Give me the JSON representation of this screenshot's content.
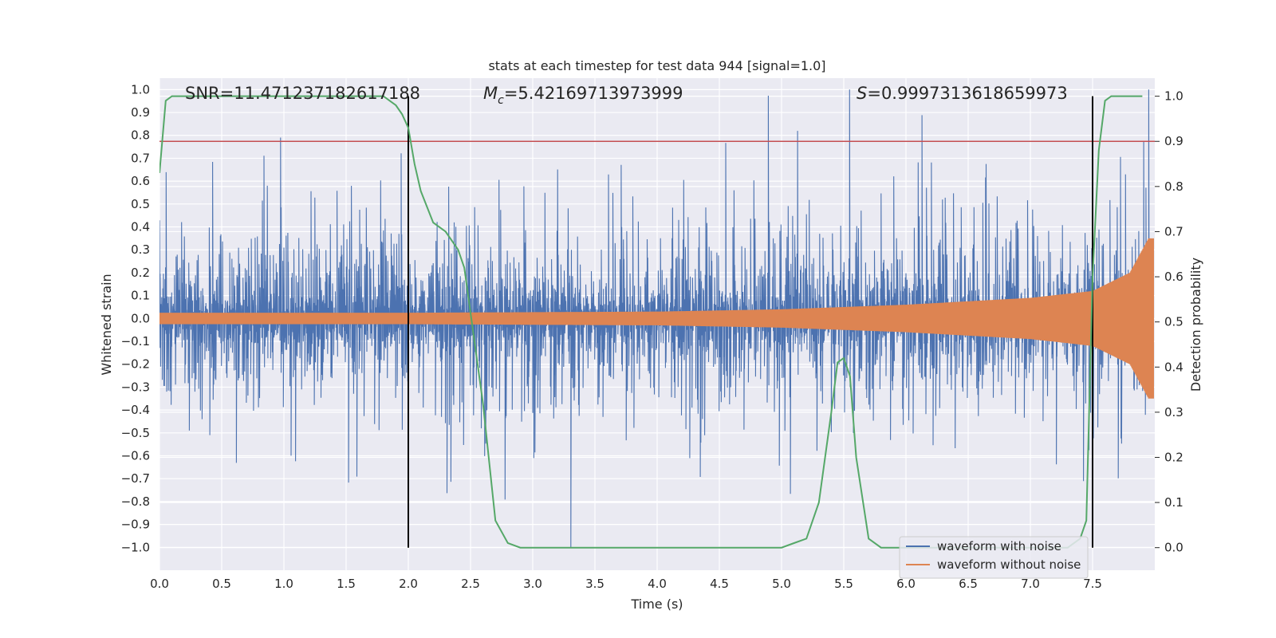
{
  "chart_data": {
    "type": "line",
    "title": "stats at each timestep for test data 944 [signal=1.0]",
    "xlabel": "Time (s)",
    "ylabel": "Whitened strain",
    "ylabel_right": "Detection probability",
    "xlim": [
      0.0,
      8.0
    ],
    "ylim": [
      -1.1,
      1.05
    ],
    "ylim_right": [
      -0.05,
      1.04
    ],
    "xticks": [
      "0.0",
      "0.5",
      "1.0",
      "1.5",
      "2.0",
      "2.5",
      "3.0",
      "3.5",
      "4.0",
      "4.5",
      "5.0",
      "5.5",
      "6.0",
      "6.5",
      "7.0",
      "7.5"
    ],
    "yticks": [
      "1.0",
      "0.9",
      "0.8",
      "0.7",
      "0.6",
      "0.5",
      "0.4",
      "0.3",
      "0.2",
      "0.1",
      "0.0",
      "-0.1",
      "-0.2",
      "-0.3",
      "-0.4",
      "-0.5",
      "-0.6",
      "-0.7",
      "-0.8",
      "-0.9",
      "-1.0"
    ],
    "yticks_right": [
      "1.0",
      "0.9",
      "0.8",
      "0.7",
      "0.6",
      "0.5",
      "0.4",
      "0.3",
      "0.2",
      "0.1",
      "0.0"
    ],
    "annotations": {
      "snr": "SNR=11.471237182617188",
      "mc_symbol": "M",
      "mc_sub": "c",
      "mc_value": "=5.42169713973999",
      "s_symbol": "S",
      "s_value": "=0.9997313618659973"
    },
    "threshold": 0.9,
    "vlines_x": [
      2.0,
      7.5
    ],
    "series": [
      {
        "name": "waveform with noise",
        "color": "#4c72b0",
        "axis": "left",
        "amplitude_range": [
          -1.0,
          1.0
        ]
      },
      {
        "name": "waveform without noise",
        "color": "#dd8452",
        "axis": "left",
        "envelope_x": [
          0.0,
          2.0,
          4.0,
          5.0,
          6.0,
          7.0,
          7.5,
          7.8,
          7.95
        ],
        "envelope_y": [
          0.025,
          0.025,
          0.03,
          0.04,
          0.06,
          0.09,
          0.12,
          0.2,
          0.35
        ]
      },
      {
        "name": "",
        "color": "#55a868",
        "axis": "right",
        "x": [
          0.0,
          0.05,
          0.1,
          0.2,
          0.4,
          1.0,
          1.5,
          1.8,
          1.9,
          1.95,
          2.0,
          2.05,
          2.1,
          2.2,
          2.3,
          2.4,
          2.45,
          2.5,
          2.6,
          2.7,
          2.8,
          2.9,
          3.5,
          4.0,
          4.5,
          5.0,
          5.1,
          5.2,
          5.3,
          5.4,
          5.45,
          5.5,
          5.55,
          5.6,
          5.7,
          5.8,
          6.0,
          6.5,
          7.0,
          7.3,
          7.4,
          7.45,
          7.5,
          7.55,
          7.6,
          7.65,
          7.7,
          7.8,
          7.9
        ],
        "y": [
          0.83,
          0.99,
          1.0,
          1.0,
          1.0,
          1.0,
          1.0,
          1.0,
          0.98,
          0.96,
          0.93,
          0.85,
          0.79,
          0.72,
          0.7,
          0.66,
          0.62,
          0.52,
          0.32,
          0.06,
          0.01,
          0.0,
          0.0,
          0.0,
          0.0,
          0.0,
          0.01,
          0.02,
          0.1,
          0.3,
          0.41,
          0.42,
          0.38,
          0.2,
          0.02,
          0.0,
          0.0,
          0.0,
          0.0,
          0.0,
          0.02,
          0.06,
          0.6,
          0.88,
          0.99,
          1.0,
          1.0,
          1.0,
          1.0
        ]
      }
    ],
    "legend_loc": "lower right",
    "grid": true
  }
}
